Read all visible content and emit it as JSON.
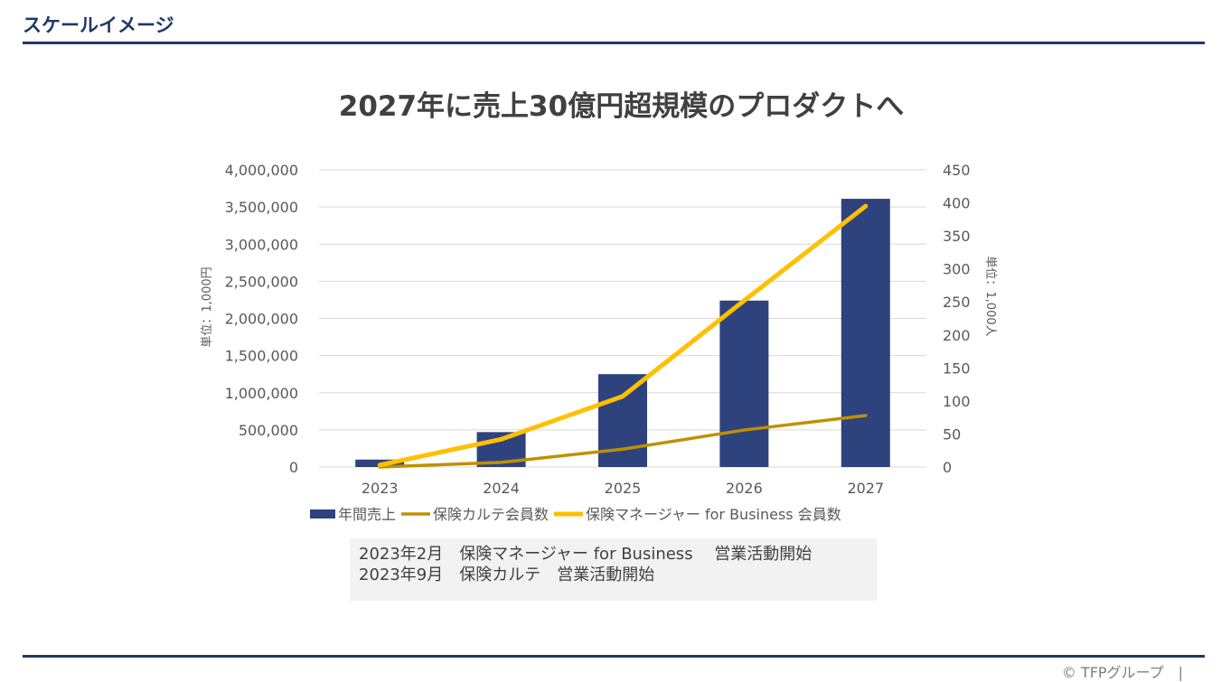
{
  "header": {
    "title": "スケールイメージ"
  },
  "slide_title": "2027年に売上30億円超規模のプロダクトへ",
  "chart_data": {
    "type": "bar",
    "title": "",
    "categories": [
      "2023",
      "2024",
      "2025",
      "2026",
      "2027"
    ],
    "ylabel": "単位：1,000円",
    "y2label": "単位：1,000人",
    "ylim": [
      0,
      4000000
    ],
    "y2lim": [
      0,
      450
    ],
    "yticks": [
      "0",
      "500,000",
      "1,000,000",
      "1,500,000",
      "2,000,000",
      "2,500,000",
      "3,000,000",
      "3,500,000",
      "4,000,000"
    ],
    "y2ticks": [
      "0",
      "50",
      "100",
      "150",
      "200",
      "250",
      "300",
      "350",
      "400",
      "450"
    ],
    "grid": true,
    "legend_position": "bottom",
    "series": [
      {
        "name": "年間売上",
        "type": "bar",
        "axis": "left",
        "color": "#2e437e",
        "values": [
          100000,
          470000,
          1250000,
          2240000,
          3610000
        ]
      },
      {
        "name": "保険カルテ会員数",
        "type": "line",
        "axis": "right",
        "color": "#bf9000",
        "values": [
          0,
          7,
          27,
          56,
          78
        ]
      },
      {
        "name": "保険マネージャー for Business 会員数",
        "type": "line",
        "axis": "right",
        "color": "#ffc000",
        "values": [
          3,
          42,
          107,
          252,
          395
        ]
      }
    ]
  },
  "notes": [
    "2023年2月　保険マネージャー for Business　 営業活動開始",
    "2023年9月　保険カルテ　営業活動開始"
  ],
  "footer": {
    "copyright": "© TFPグループ　|"
  }
}
